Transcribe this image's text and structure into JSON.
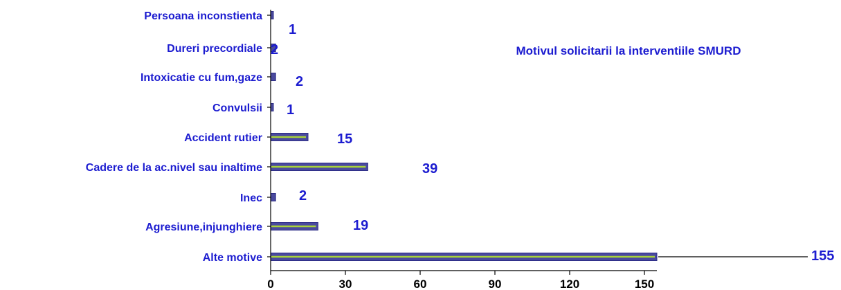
{
  "chart_data": {
    "type": "bar",
    "orientation": "horizontal",
    "title": "Motivul solicitarii la interventiile SMURD",
    "categories": [
      "Persoana inconstienta",
      "Dureri precordiale",
      "Intoxicatie cu fum,gaze",
      "Convulsii",
      "Accident rutier",
      "Cadere de la ac.nivel sau inaltime",
      "Inec",
      "Agresiune,injunghiere",
      "Alte motive"
    ],
    "values": [
      1,
      2,
      2,
      1,
      15,
      39,
      2,
      19,
      155
    ],
    "value_labels": [
      "1",
      "2",
      "2",
      "1",
      "15",
      "39",
      "2",
      "19",
      "155"
    ],
    "xlim": [
      0,
      155
    ],
    "xticks": [
      0,
      30,
      60,
      90,
      120,
      150
    ],
    "xtick_labels": [
      "0",
      "30",
      "60",
      "90",
      "120",
      "150"
    ],
    "xlabel": "",
    "ylabel": "",
    "grid": false,
    "legend": "none",
    "colors": {
      "bar_fill": "#4a4a9e",
      "bar_border": "#2e2e88",
      "bar_stripe": "#a8d23a",
      "label_text": "#1c1cd0",
      "axis": "#000000"
    }
  }
}
